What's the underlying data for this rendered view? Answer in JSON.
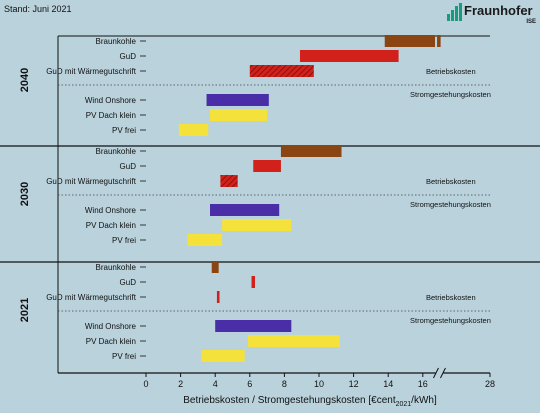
{
  "header": {
    "stand": "Stand: Juni 2021"
  },
  "logo": {
    "name": "Fraunhofer",
    "institute": "ISE",
    "color": "#179c7d"
  },
  "chart_data": {
    "type": "bar",
    "xlabel": "Betriebskosten / Stromgestehungskosten [€cent2021/kWh]",
    "xlim": [
      0,
      28
    ],
    "x_ticks": [
      0,
      2,
      4,
      6,
      8,
      10,
      12,
      14,
      16,
      28
    ],
    "axis_break_between": [
      16.5,
      28
    ],
    "section_labels": {
      "operating": "Betriebskosten",
      "lcoe": "Stromgestehungskosten"
    },
    "colors": {
      "Braunkohle": "#8b4513",
      "GuD": "#d2201a",
      "GuD mit Wärmegutschrift": "#d2201a",
      "Wind Onshore": "#4a2ea8",
      "PV Dach klein": "#f5e13c",
      "PV frei": "#f5e13c"
    },
    "groups": [
      {
        "year": "2040",
        "rows": [
          {
            "label": "Braunkohle",
            "section": "operating",
            "ranges": [
              [
                13.8,
                17.2
              ],
              [
                17.6,
                18.3
              ]
            ]
          },
          {
            "label": "GuD",
            "section": "operating",
            "ranges": [
              [
                8.9,
                14.6
              ]
            ]
          },
          {
            "label": "GuD mit Wärmegutschrift",
            "section": "operating",
            "hatched": true,
            "ranges": [
              [
                6.0,
                9.7
              ]
            ]
          },
          {
            "label": "Wind Onshore",
            "section": "lcoe",
            "ranges": [
              [
                3.5,
                7.1
              ]
            ]
          },
          {
            "label": "PV Dach klein",
            "section": "lcoe",
            "ranges": [
              [
                3.7,
                7.0
              ]
            ]
          },
          {
            "label": "PV frei",
            "section": "lcoe",
            "ranges": [
              [
                1.9,
                3.6
              ]
            ]
          }
        ]
      },
      {
        "year": "2030",
        "rows": [
          {
            "label": "Braunkohle",
            "section": "operating",
            "ranges": [
              [
                7.8,
                11.3
              ]
            ]
          },
          {
            "label": "GuD",
            "section": "operating",
            "ranges": [
              [
                6.2,
                7.8
              ]
            ]
          },
          {
            "label": "GuD mit Wärmegutschrift",
            "section": "operating",
            "hatched": true,
            "ranges": [
              [
                4.3,
                5.3
              ]
            ]
          },
          {
            "label": "Wind Onshore",
            "section": "lcoe",
            "ranges": [
              [
                3.7,
                7.7
              ]
            ]
          },
          {
            "label": "PV Dach klein",
            "section": "lcoe",
            "ranges": [
              [
                4.4,
                8.4
              ]
            ]
          },
          {
            "label": "PV frei",
            "section": "lcoe",
            "ranges": [
              [
                2.4,
                4.4
              ]
            ]
          }
        ]
      },
      {
        "year": "2021",
        "rows": [
          {
            "label": "Braunkohle",
            "section": "operating",
            "ranges": [
              [
                3.8,
                4.2
              ]
            ]
          },
          {
            "label": "GuD",
            "section": "operating",
            "ranges": [
              [
                6.1,
                6.3
              ]
            ]
          },
          {
            "label": "GuD mit Wärmegutschrift",
            "section": "operating",
            "ranges": [
              [
                4.1,
                4.25
              ]
            ]
          },
          {
            "label": "Wind Onshore",
            "section": "lcoe",
            "ranges": [
              [
                4.0,
                8.4
              ]
            ]
          },
          {
            "label": "PV Dach klein",
            "section": "lcoe",
            "ranges": [
              [
                5.9,
                11.2
              ]
            ]
          },
          {
            "label": "PV frei",
            "section": "lcoe",
            "ranges": [
              [
                3.2,
                5.7
              ]
            ]
          }
        ]
      }
    ]
  }
}
